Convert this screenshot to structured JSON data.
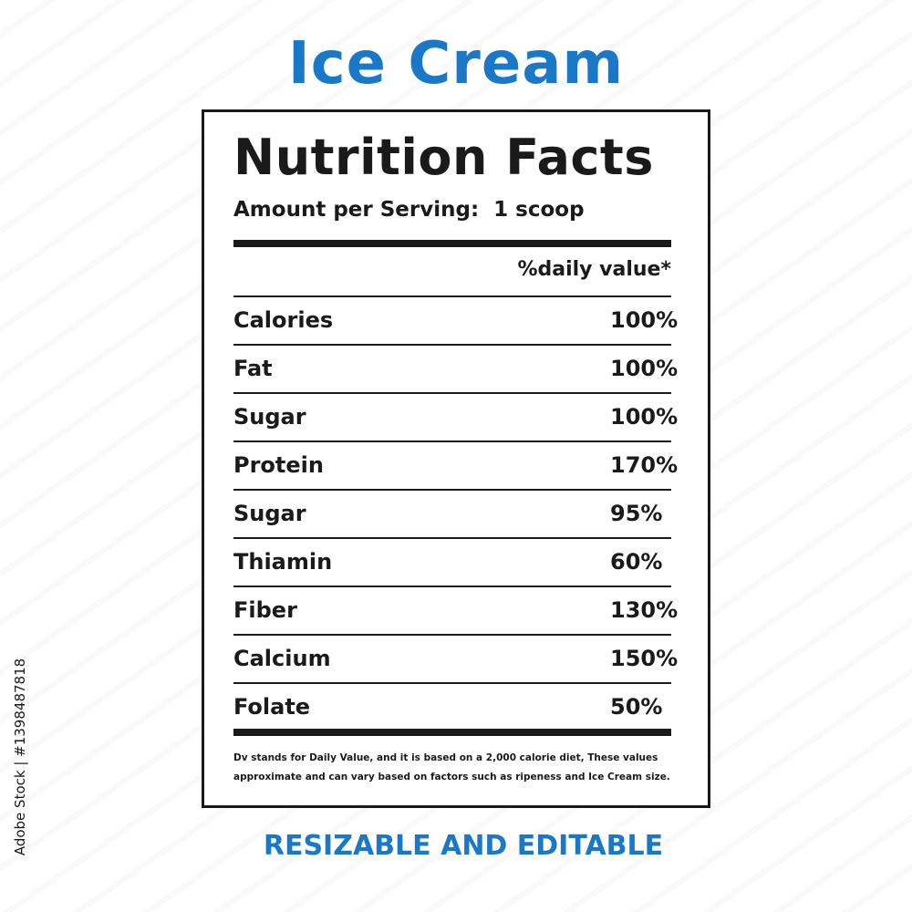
{
  "title": "Ice Cream",
  "subtitle": "RESIZABLE AND EDITABLE",
  "colors": {
    "brand_blue": "#1978c8",
    "ink": "#1a1a1a"
  },
  "label": {
    "heading": "Nutrition Facts",
    "serving_label": "Amount per Serving:",
    "serving_value": "1 scoop",
    "dv_header": "%daily value*",
    "nutrients": [
      {
        "name": "Calories",
        "value": "100%"
      },
      {
        "name": "Fat",
        "value": "100%"
      },
      {
        "name": "Sugar",
        "value": "100%"
      },
      {
        "name": "Protein",
        "value": "170%"
      },
      {
        "name": "Sugar",
        "value": "95%"
      },
      {
        "name": "Thiamin",
        "value": "60%"
      },
      {
        "name": "Fiber",
        "value": "130%"
      },
      {
        "name": "Calcium",
        "value": "150%"
      },
      {
        "name": "Folate",
        "value": "50%"
      }
    ],
    "footnote": "Dv stands for Daily Value, and it is based on a 2,000 calorie diet, These values approximate and can vary based on factors such as ripeness and Ice Cream size."
  },
  "stock_id": "Adobe Stock | #1398487818"
}
